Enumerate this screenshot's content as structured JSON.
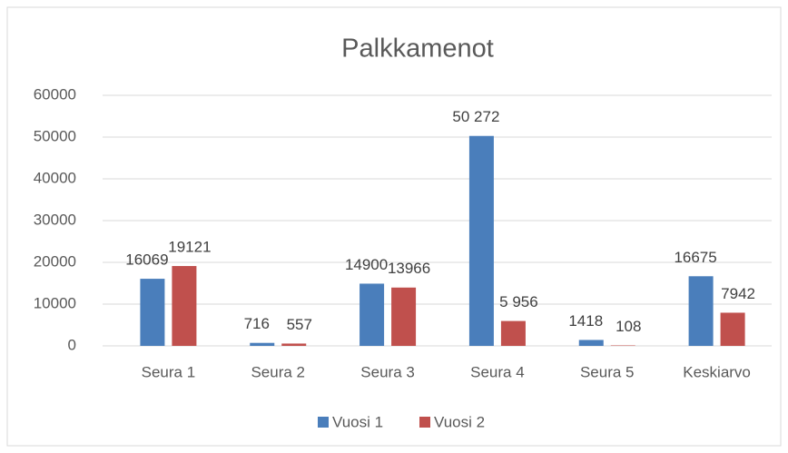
{
  "chart_data": {
    "type": "bar",
    "title": "Palkkamenot",
    "categories": [
      "Seura 1",
      "Seura 2",
      "Seura 3",
      "Seura 4",
      "Seura 5",
      "Keskiarvo"
    ],
    "series": [
      {
        "name": "Vuosi 1",
        "color": "#4a7ebb",
        "values": [
          16069,
          716,
          14900,
          50272,
          1418,
          16675
        ],
        "value_labels": [
          "16069",
          "716",
          "14900",
          "50 272",
          "1418",
          "16675"
        ]
      },
      {
        "name": "Vuosi 2",
        "color": "#c0504d",
        "values": [
          19121,
          557,
          13966,
          5956,
          108,
          7942
        ],
        "value_labels": [
          "19121",
          "557",
          "13966",
          "5 956",
          "108",
          "7942"
        ]
      }
    ],
    "ylim": [
      0,
      60000
    ],
    "yticks": [
      0,
      10000,
      20000,
      30000,
      40000,
      50000,
      60000
    ],
    "grid": true,
    "legend": "bottom"
  }
}
